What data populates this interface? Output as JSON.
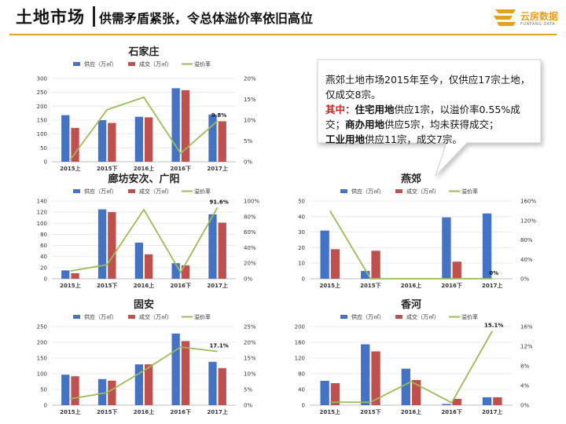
{
  "header": {
    "title": "土地市场",
    "subtitle": "供需矛盾紧张，令总体溢价率依旧高位",
    "logo_name": "云房数据",
    "logo_en": "FUNFANG DATA"
  },
  "colors": {
    "supply": "#4472c4",
    "deal": "#c0504d",
    "premium": "#9bbb59",
    "accent": "#e4a11b"
  },
  "callout": {
    "line1": "燕郊土地市场2015年至今，仅供应17宗土地，仅成交8宗。",
    "k1": "其中：",
    "k2": "住宅用地",
    "t2": "供应1宗，以溢价率0.55%成交；",
    "k3": "商办用地",
    "t3": "供应5宗，均未获得成交；",
    "k4": "工业用地",
    "t4": "供应11宗，成交7宗。"
  },
  "chart_data": [
    {
      "type": "bar",
      "title": "石家庄",
      "categories": [
        "2015上",
        "2015下",
        "2016上",
        "2016下",
        "2017上"
      ],
      "series": [
        {
          "name": "供应（万㎡）",
          "kind": "bar",
          "axis": "left",
          "values": [
            168,
            150,
            162,
            265,
            170
          ]
        },
        {
          "name": "成交（万㎡）",
          "kind": "bar",
          "axis": "left",
          "values": [
            122,
            140,
            160,
            258,
            146
          ]
        },
        {
          "name": "溢价率",
          "kind": "line",
          "axis": "right",
          "values": [
            0.5,
            12.5,
            15.5,
            2,
            9.8
          ]
        }
      ],
      "ylim_left": [
        0,
        300
      ],
      "yticks_left": [
        "0",
        "50",
        "100",
        "150",
        "200",
        "250",
        "300"
      ],
      "ylim_right": [
        0,
        20
      ],
      "yticks_right": [
        "0%",
        "5%",
        "10%",
        "15%",
        "20%"
      ],
      "annotations": [
        {
          "index": 4,
          "text": "9.8%"
        }
      ]
    },
    {
      "type": "bar",
      "title": "廊坊安次、广阳",
      "categories": [
        "2015上",
        "2015下",
        "2016上",
        "2016下",
        "2017上"
      ],
      "series": [
        {
          "name": "供应（万㎡）",
          "kind": "bar",
          "axis": "left",
          "values": [
            15,
            125,
            65,
            28,
            116
          ]
        },
        {
          "name": "成交（万㎡）",
          "kind": "bar",
          "axis": "left",
          "values": [
            10,
            120,
            44,
            24,
            101
          ]
        },
        {
          "name": "溢价率",
          "kind": "line",
          "axis": "right",
          "values": [
            10,
            18,
            89,
            8,
            91.6
          ]
        }
      ],
      "ylim_left": [
        0,
        140
      ],
      "yticks_left": [
        "0",
        "20",
        "40",
        "60",
        "80",
        "100",
        "120",
        "140"
      ],
      "ylim_right": [
        0,
        100
      ],
      "yticks_right": [
        "0%",
        "20%",
        "40%",
        "60%",
        "80%",
        "100%"
      ],
      "annotations": [
        {
          "index": 4,
          "text": "91.6%"
        }
      ]
    },
    {
      "type": "bar",
      "title": "燕郊",
      "categories": [
        "2015上",
        "2015下",
        "2016上",
        "2016下",
        "2017上"
      ],
      "series": [
        {
          "name": "供应（万㎡）",
          "kind": "bar",
          "axis": "left",
          "values": [
            31,
            5,
            0,
            39.5,
            42
          ]
        },
        {
          "name": "成交（万㎡）",
          "kind": "bar",
          "axis": "left",
          "values": [
            19,
            18,
            0,
            11,
            0
          ]
        },
        {
          "name": "溢价率",
          "kind": "line",
          "axis": "right",
          "values": [
            140,
            0,
            0,
            0,
            0
          ]
        }
      ],
      "ylim_left": [
        0,
        50
      ],
      "yticks_left": [
        "0",
        "10",
        "20",
        "30",
        "40",
        "50"
      ],
      "ylim_right": [
        0,
        160
      ],
      "yticks_right": [
        "0%",
        "40%",
        "80%",
        "120%",
        "160%"
      ],
      "annotations": [
        {
          "index": 4,
          "text": "0%"
        }
      ]
    },
    {
      "type": "bar",
      "title": "固安",
      "categories": [
        "2015上",
        "2015下",
        "2016上",
        "2016下",
        "2017上"
      ],
      "series": [
        {
          "name": "供应（万㎡）",
          "kind": "bar",
          "axis": "left",
          "values": [
            97,
            83,
            130,
            228,
            138
          ]
        },
        {
          "name": "成交（万㎡）",
          "kind": "bar",
          "axis": "left",
          "values": [
            92,
            78,
            130,
            204,
            118
          ]
        },
        {
          "name": "溢价率",
          "kind": "line",
          "axis": "right",
          "values": [
            2,
            4,
            11,
            18.5,
            17.1
          ]
        }
      ],
      "ylim_left": [
        0,
        250
      ],
      "yticks_left": [
        "0",
        "50",
        "100",
        "150",
        "200",
        "250"
      ],
      "ylim_right": [
        0,
        25
      ],
      "yticks_right": [
        "0%",
        "5%",
        "10%",
        "15%",
        "20%",
        "25%"
      ],
      "annotations": [
        {
          "index": 4,
          "text": "17.1%"
        }
      ]
    },
    {
      "type": "bar",
      "title": "香河",
      "categories": [
        "2015上",
        "2015下",
        "2016上",
        "2016下",
        "2017上"
      ],
      "series": [
        {
          "name": "供应（万㎡）",
          "kind": "bar",
          "axis": "left",
          "values": [
            62,
            155,
            93,
            3,
            20
          ]
        },
        {
          "name": "成交（万㎡）",
          "kind": "bar",
          "axis": "left",
          "values": [
            56,
            137,
            64,
            16,
            20
          ]
        },
        {
          "name": "溢价率",
          "kind": "line",
          "axis": "right",
          "values": [
            0.6,
            0.6,
            4.8,
            0.5,
            15.1
          ]
        }
      ],
      "ylim_left": [
        0,
        200
      ],
      "yticks_left": [
        "0",
        "40",
        "80",
        "120",
        "160",
        "200"
      ],
      "ylim_right": [
        0,
        16
      ],
      "yticks_right": [
        "0%",
        "4%",
        "8%",
        "12%",
        "16%"
      ],
      "annotations": [
        {
          "index": 4,
          "text": "15.1%"
        }
      ]
    }
  ]
}
